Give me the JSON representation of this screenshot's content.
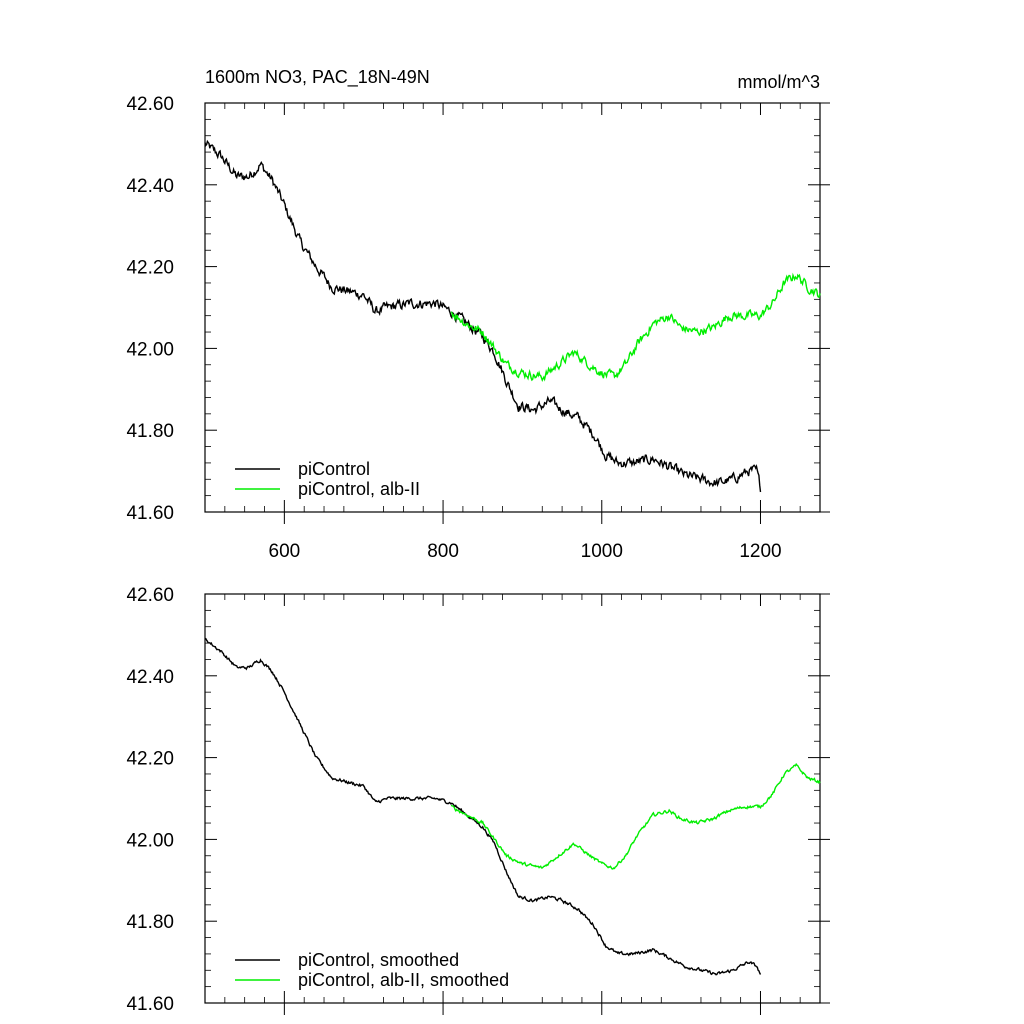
{
  "chart_data": [
    {
      "type": "line",
      "title_left": "1600m NO3, PAC_18N-49N",
      "title_right": "mmol/m^3",
      "xlim": [
        500,
        1275
      ],
      "ylim": [
        41.6,
        42.6
      ],
      "xticks": [
        600,
        800,
        1000,
        1200
      ],
      "xtick_labels": [
        "600",
        "800",
        "1000",
        "1200"
      ],
      "yticks": [
        41.6,
        41.8,
        42.0,
        42.2,
        42.4,
        42.6
      ],
      "ytick_labels": [
        "41.60",
        "41.80",
        "42.00",
        "42.20",
        "42.40",
        "42.60"
      ],
      "series": [
        {
          "name": "piControl",
          "color": "#000000",
          "points": [
            [
              500,
              42.5
            ],
            [
              520,
              42.47
            ],
            [
              540,
              42.42
            ],
            [
              555,
              42.42
            ],
            [
              570,
              42.45
            ],
            [
              585,
              42.41
            ],
            [
              600,
              42.35
            ],
            [
              620,
              42.26
            ],
            [
              640,
              42.2
            ],
            [
              660,
              42.15
            ],
            [
              680,
              42.14
            ],
            [
              700,
              42.13
            ],
            [
              715,
              42.09
            ],
            [
              730,
              42.1
            ],
            [
              760,
              42.11
            ],
            [
              790,
              42.11
            ],
            [
              810,
              42.09
            ],
            [
              830,
              42.06
            ],
            [
              850,
              42.03
            ],
            [
              865,
              41.99
            ],
            [
              880,
              41.92
            ],
            [
              895,
              41.86
            ],
            [
              915,
              41.85
            ],
            [
              935,
              41.87
            ],
            [
              950,
              41.85
            ],
            [
              970,
              41.83
            ],
            [
              990,
              41.79
            ],
            [
              1005,
              41.74
            ],
            [
              1020,
              41.72
            ],
            [
              1040,
              41.72
            ],
            [
              1065,
              41.73
            ],
            [
              1085,
              41.71
            ],
            [
              1105,
              41.69
            ],
            [
              1125,
              41.68
            ],
            [
              1145,
              41.67
            ],
            [
              1165,
              41.68
            ],
            [
              1185,
              41.7
            ],
            [
              1195,
              41.7
            ],
            [
              1200,
              41.66
            ]
          ],
          "noise": 0.009
        },
        {
          "name": "piControl, alb-II",
          "color": "#00ee00",
          "points": [
            [
              810,
              42.09
            ],
            [
              830,
              42.06
            ],
            [
              850,
              42.04
            ],
            [
              865,
              42.0
            ],
            [
              880,
              41.96
            ],
            [
              900,
              41.94
            ],
            [
              925,
              41.93
            ],
            [
              945,
              41.96
            ],
            [
              965,
              41.99
            ],
            [
              985,
              41.96
            ],
            [
              1000,
              41.94
            ],
            [
              1015,
              41.93
            ],
            [
              1030,
              41.96
            ],
            [
              1045,
              42.01
            ],
            [
              1065,
              42.06
            ],
            [
              1085,
              42.08
            ],
            [
              1100,
              42.05
            ],
            [
              1120,
              42.04
            ],
            [
              1140,
              42.05
            ],
            [
              1160,
              42.08
            ],
            [
              1180,
              42.08
            ],
            [
              1200,
              42.08
            ],
            [
              1215,
              42.11
            ],
            [
              1230,
              42.16
            ],
            [
              1245,
              42.18
            ],
            [
              1260,
              42.15
            ],
            [
              1275,
              42.13
            ]
          ],
          "noise": 0.008
        }
      ]
    },
    {
      "type": "line",
      "xlim": [
        500,
        1275
      ],
      "ylim": [
        41.6,
        42.6
      ],
      "xticks": [
        600,
        800,
        1000,
        1200
      ],
      "yticks": [
        41.6,
        41.8,
        42.0,
        42.2,
        42.4,
        42.6
      ],
      "ytick_labels": [
        "41.60",
        "41.80",
        "42.00",
        "42.20",
        "42.40",
        "42.60"
      ],
      "series": [
        {
          "name": "piControl, smoothed",
          "color": "#000000",
          "points": [
            [
              500,
              42.49
            ],
            [
              520,
              42.46
            ],
            [
              540,
              42.42
            ],
            [
              555,
              42.42
            ],
            [
              570,
              42.44
            ],
            [
              585,
              42.41
            ],
            [
              600,
              42.36
            ],
            [
              620,
              42.28
            ],
            [
              640,
              42.2
            ],
            [
              660,
              42.15
            ],
            [
              680,
              42.14
            ],
            [
              700,
              42.13
            ],
            [
              715,
              42.09
            ],
            [
              730,
              42.1
            ],
            [
              760,
              42.1
            ],
            [
              790,
              42.1
            ],
            [
              810,
              42.09
            ],
            [
              830,
              42.06
            ],
            [
              850,
              42.03
            ],
            [
              865,
              41.99
            ],
            [
              880,
              41.92
            ],
            [
              895,
              41.86
            ],
            [
              915,
              41.85
            ],
            [
              935,
              41.86
            ],
            [
              950,
              41.85
            ],
            [
              970,
              41.83
            ],
            [
              990,
              41.79
            ],
            [
              1005,
              41.74
            ],
            [
              1020,
              41.72
            ],
            [
              1040,
              41.72
            ],
            [
              1065,
              41.73
            ],
            [
              1085,
              41.71
            ],
            [
              1105,
              41.69
            ],
            [
              1125,
              41.68
            ],
            [
              1145,
              41.67
            ],
            [
              1165,
              41.68
            ],
            [
              1185,
              41.7
            ],
            [
              1195,
              41.69
            ],
            [
              1200,
              41.67
            ]
          ],
          "noise": 0.003
        },
        {
          "name": "piControl, alb-II, smoothed",
          "color": "#00ee00",
          "points": [
            [
              810,
              42.08
            ],
            [
              830,
              42.06
            ],
            [
              850,
              42.04
            ],
            [
              865,
              42.0
            ],
            [
              880,
              41.96
            ],
            [
              900,
              41.94
            ],
            [
              925,
              41.93
            ],
            [
              945,
              41.96
            ],
            [
              965,
              41.99
            ],
            [
              985,
              41.96
            ],
            [
              1000,
              41.94
            ],
            [
              1015,
              41.93
            ],
            [
              1030,
              41.96
            ],
            [
              1045,
              42.01
            ],
            [
              1065,
              42.06
            ],
            [
              1085,
              42.07
            ],
            [
              1100,
              42.05
            ],
            [
              1120,
              42.04
            ],
            [
              1140,
              42.05
            ],
            [
              1160,
              42.07
            ],
            [
              1180,
              42.08
            ],
            [
              1200,
              42.08
            ],
            [
              1215,
              42.11
            ],
            [
              1230,
              42.16
            ],
            [
              1245,
              42.18
            ],
            [
              1260,
              42.15
            ],
            [
              1275,
              42.14
            ]
          ],
          "noise": 0.003
        }
      ]
    }
  ]
}
